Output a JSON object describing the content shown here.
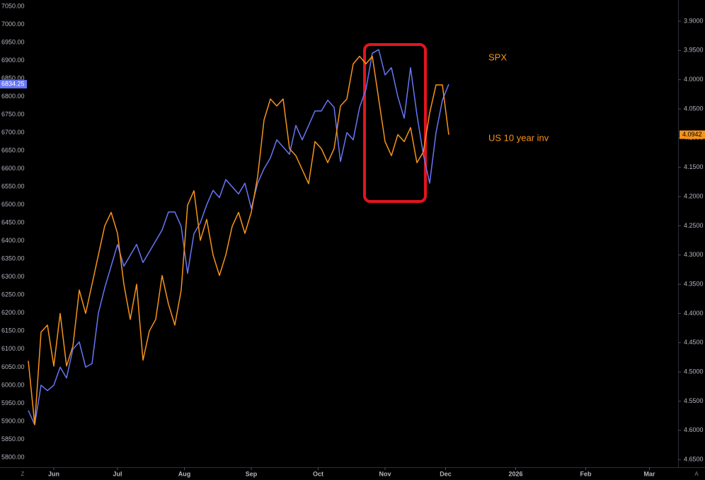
{
  "chart_data": {
    "type": "line",
    "x": [
      0,
      2,
      4,
      6,
      8,
      10,
      12,
      14,
      16,
      18,
      20,
      22,
      24,
      26,
      28,
      30,
      32,
      34,
      36,
      38,
      40,
      42,
      44,
      46,
      48,
      50,
      52,
      54,
      56,
      58,
      60,
      62,
      64,
      66,
      68,
      70,
      72,
      74,
      76,
      78,
      80,
      82,
      84,
      86,
      88,
      90,
      92,
      94,
      96,
      98,
      100,
      102,
      104,
      106,
      108,
      110,
      112,
      114,
      116,
      118,
      120,
      122,
      124,
      126,
      128,
      130,
      132
    ],
    "xlim": [
      0,
      204
    ],
    "xticks": [
      {
        "value": 8,
        "label": "Jun"
      },
      {
        "value": 28,
        "label": "Jul"
      },
      {
        "value": 49,
        "label": "Aug"
      },
      {
        "value": 70,
        "label": "Sep"
      },
      {
        "value": 91,
        "label": "Oct"
      },
      {
        "value": 112,
        "label": "Nov"
      },
      {
        "value": 131,
        "label": "Dec"
      },
      {
        "value": 153,
        "label": "2026"
      },
      {
        "value": 175,
        "label": "Feb"
      },
      {
        "value": 195,
        "label": "Mar"
      }
    ],
    "ylim": [
      5774.5,
      7067.6
    ],
    "yticks": [
      {
        "value": 5800,
        "label": "5800.00"
      },
      {
        "value": 5850,
        "label": "5850.00"
      },
      {
        "value": 5900,
        "label": "5900.00"
      },
      {
        "value": 5950,
        "label": "5950.00"
      },
      {
        "value": 6000,
        "label": "6000.00"
      },
      {
        "value": 6050,
        "label": "6050.00"
      },
      {
        "value": 6100,
        "label": "6100.00"
      },
      {
        "value": 6150,
        "label": "6150.00"
      },
      {
        "value": 6200,
        "label": "6200.00"
      },
      {
        "value": 6250,
        "label": "6250.00"
      },
      {
        "value": 6300,
        "label": "6300.00"
      },
      {
        "value": 6350,
        "label": "6350.00"
      },
      {
        "value": 6400,
        "label": "6400.00"
      },
      {
        "value": 6450,
        "label": "6450.00"
      },
      {
        "value": 6500,
        "label": "6500.00"
      },
      {
        "value": 6550,
        "label": "6550.00"
      },
      {
        "value": 6600,
        "label": "6600.00"
      },
      {
        "value": 6650,
        "label": "6650.00"
      },
      {
        "value": 6700,
        "label": "6700.00"
      },
      {
        "value": 6750,
        "label": "6750.00"
      },
      {
        "value": 6800,
        "label": "6800.00"
      },
      {
        "value": 6850,
        "label": "6850.00"
      },
      {
        "value": 6900,
        "label": "6900.00"
      },
      {
        "value": 6950,
        "label": "6950.00"
      },
      {
        "value": 7000,
        "label": "7000.00"
      },
      {
        "value": 7050,
        "label": "7050.00"
      }
    ],
    "y2lim": [
      3.8637,
      4.662
    ],
    "y2_inverted": true,
    "y2ticks": [
      {
        "value": 3.9,
        "label": "3.9000"
      },
      {
        "value": 3.95,
        "label": "3.9500"
      },
      {
        "value": 4.0,
        "label": "4.0000"
      },
      {
        "value": 4.05,
        "label": "4.0500"
      },
      {
        "value": 4.1,
        "label": "4.1000"
      },
      {
        "value": 4.15,
        "label": "4.1500"
      },
      {
        "value": 4.2,
        "label": "4.2000"
      },
      {
        "value": 4.25,
        "label": "4.2500"
      },
      {
        "value": 4.3,
        "label": "4.3000"
      },
      {
        "value": 4.35,
        "label": "4.3500"
      },
      {
        "value": 4.4,
        "label": "4.4000"
      },
      {
        "value": 4.45,
        "label": "4.4500"
      },
      {
        "value": 4.5,
        "label": "4.5000"
      },
      {
        "value": 4.55,
        "label": "4.5500"
      },
      {
        "value": 4.6,
        "label": "4.6000"
      },
      {
        "value": 4.65,
        "label": "4.6500"
      }
    ],
    "grid": false,
    "series": [
      {
        "name": "SPX",
        "color": "#6776f5",
        "label_color": "#f7931a",
        "values": [
          5930,
          5890,
          6000,
          5985,
          6000,
          6050,
          6020,
          6100,
          6120,
          6050,
          6060,
          6200,
          6270,
          6330,
          6390,
          6330,
          6360,
          6390,
          6340,
          6370,
          6400,
          6430,
          6480,
          6480,
          6440,
          6310,
          6420,
          6450,
          6500,
          6540,
          6520,
          6570,
          6550,
          6530,
          6560,
          6490,
          6560,
          6600,
          6630,
          6680,
          6660,
          6640,
          6720,
          6680,
          6720,
          6760,
          6760,
          6790,
          6770,
          6620,
          6700,
          6680,
          6770,
          6820,
          6920,
          6930,
          6860,
          6880,
          6800,
          6740,
          6880,
          6750,
          6640,
          6560,
          6700,
          6790,
          6834.25
        ]
      },
      {
        "name": "US 10 year inv",
        "color": "#f7931a",
        "label_color": "#f7931a",
        "axis": "y2",
        "values": [
          4.481,
          4.59,
          4.432,
          4.42,
          4.49,
          4.4,
          4.49,
          4.456,
          4.36,
          4.4,
          4.35,
          4.3,
          4.25,
          4.227,
          4.263,
          4.35,
          4.41,
          4.35,
          4.48,
          4.43,
          4.41,
          4.335,
          4.384,
          4.42,
          4.36,
          4.215,
          4.19,
          4.275,
          4.239,
          4.3,
          4.335,
          4.3,
          4.251,
          4.227,
          4.263,
          4.227,
          4.166,
          4.069,
          4.033,
          4.045,
          4.033,
          4.118,
          4.13,
          4.154,
          4.178,
          4.106,
          4.118,
          4.142,
          4.118,
          4.045,
          4.033,
          3.973,
          3.96,
          3.973,
          3.96,
          4.033,
          4.106,
          4.13,
          4.094,
          4.106,
          4.082,
          4.142,
          4.124,
          4.057,
          4.009,
          4.009,
          4.0942
        ]
      }
    ],
    "corner_labels": [
      "Z",
      "A"
    ]
  }
}
